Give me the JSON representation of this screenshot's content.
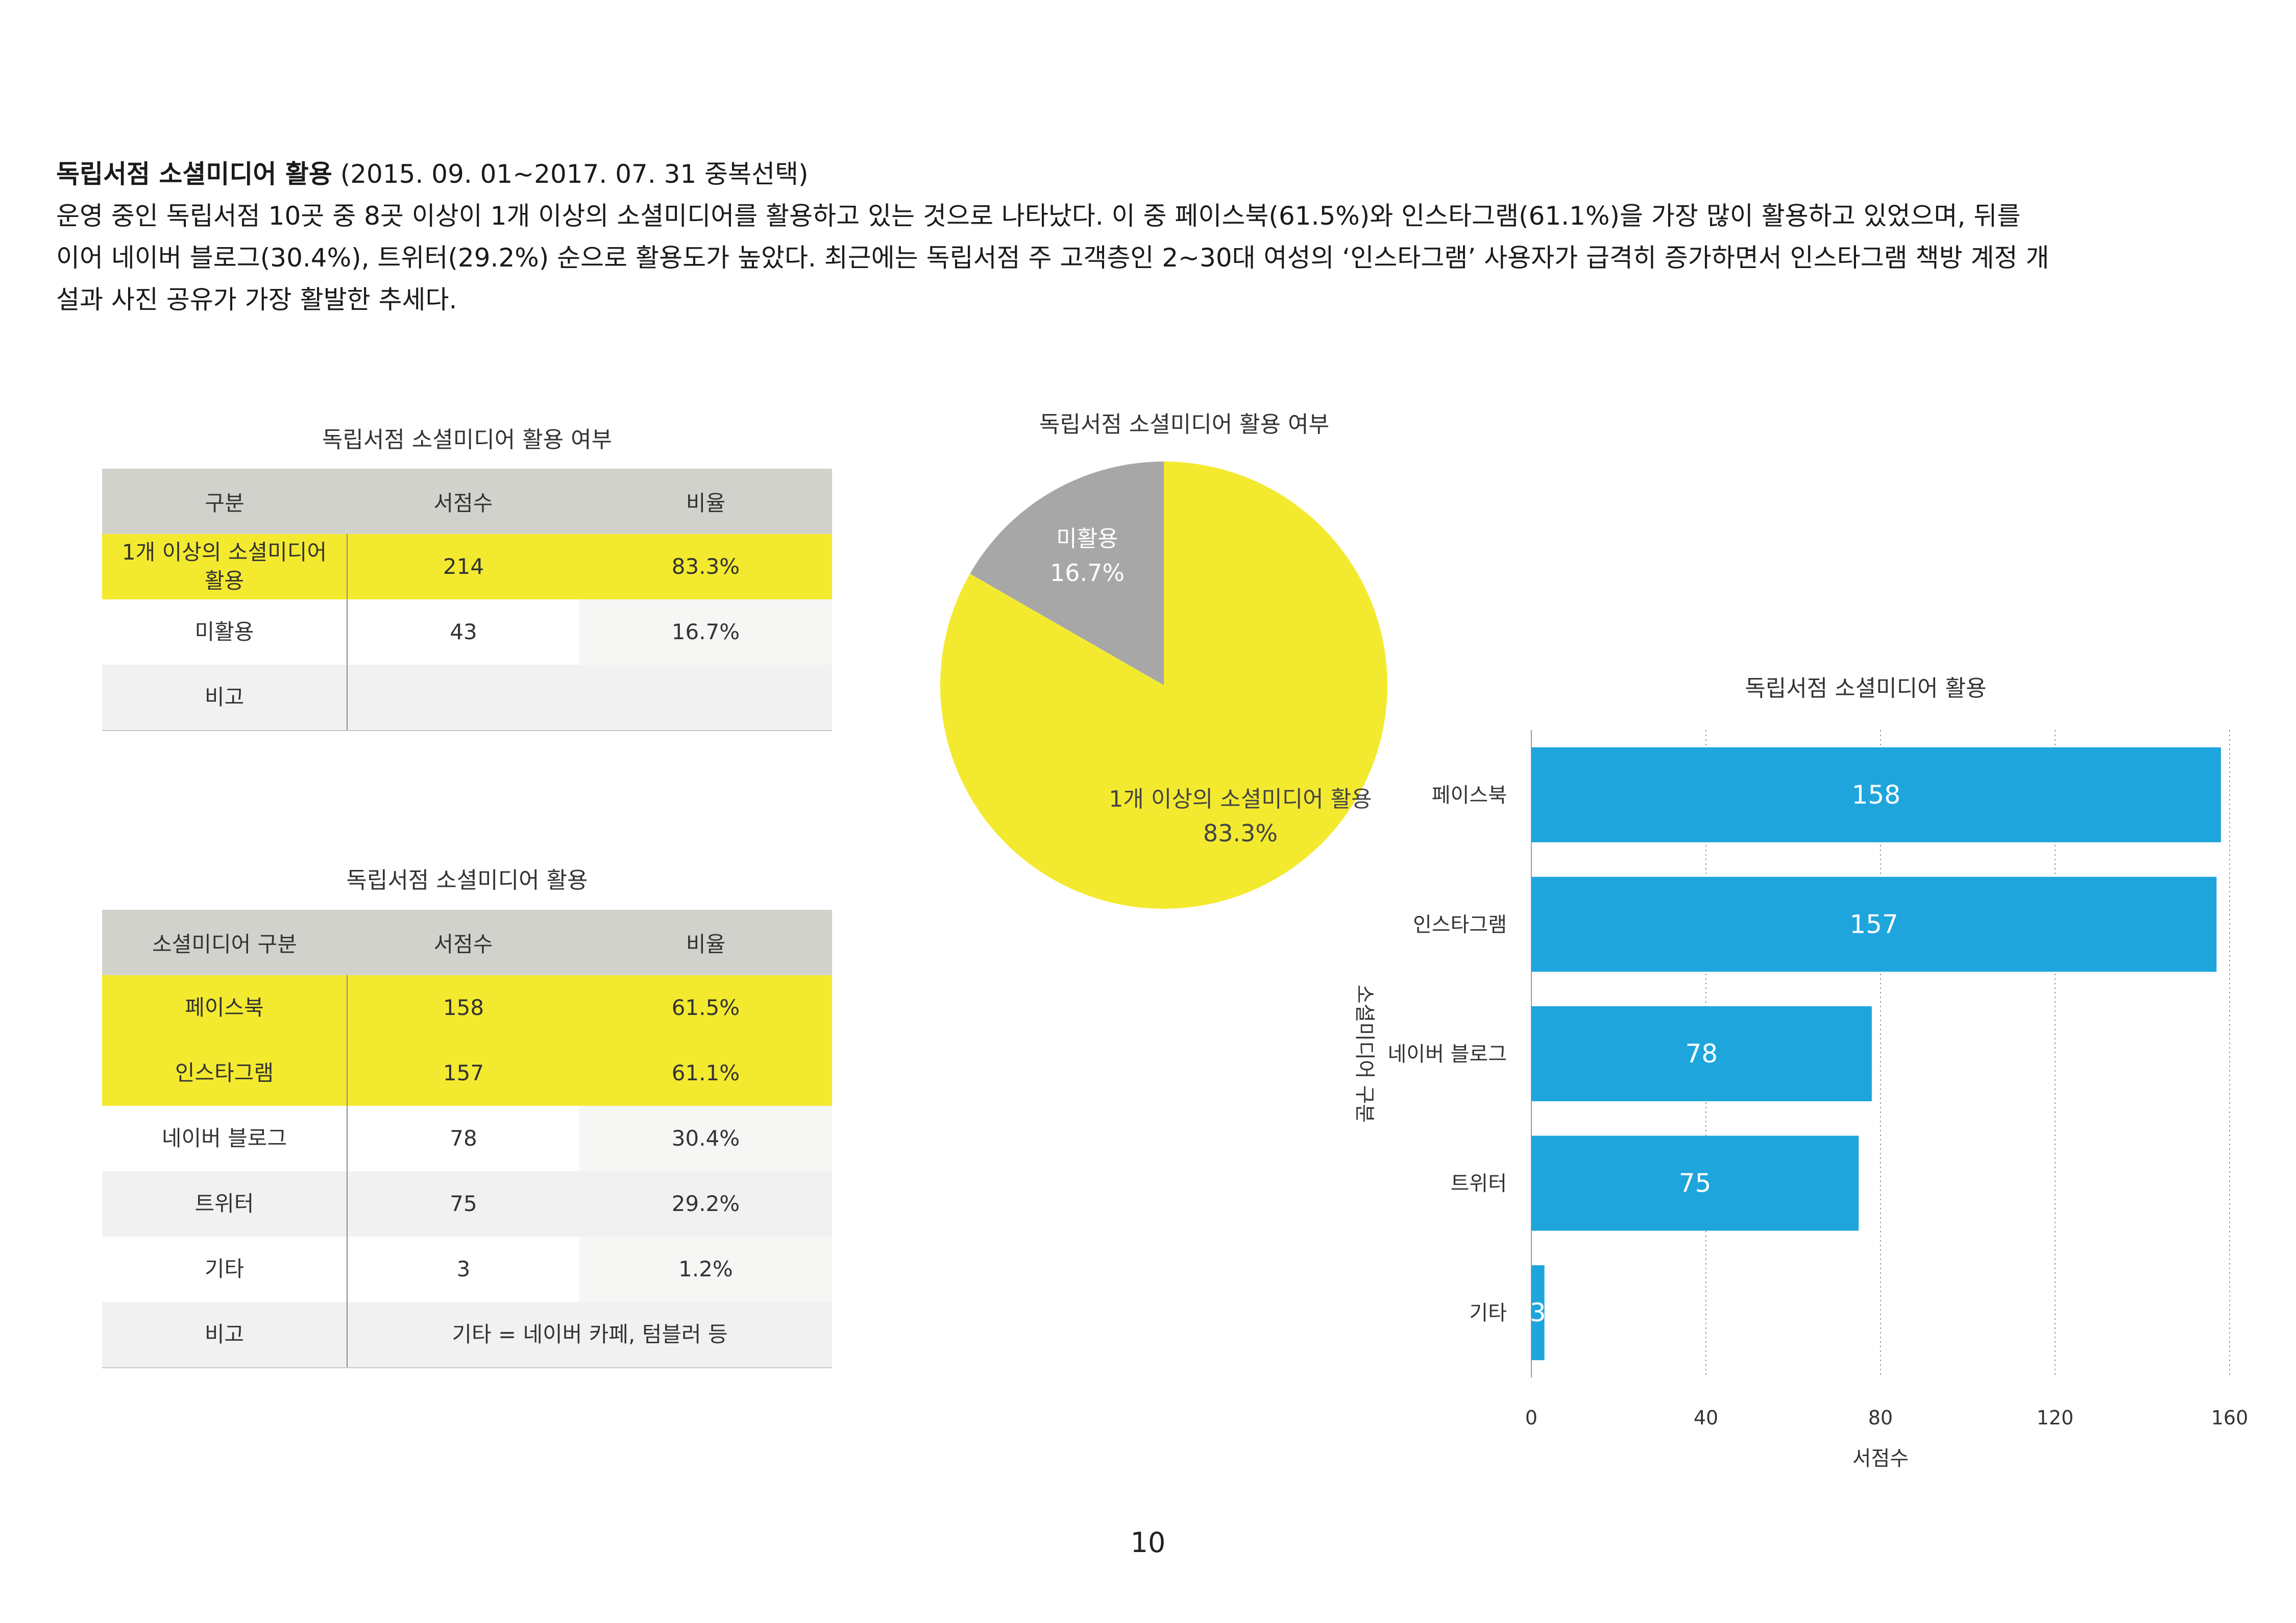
{
  "intro": {
    "title": "독립서점 소셜미디어 활용",
    "period": " (2015. 09. 01~2017. 07. 31 중복선택)",
    "line1": "운영 중인 독립서점 10곳 중 8곳 이상이 1개 이상의 소셜미디어를 활용하고 있는 것으로 나타났다. 이 중 페이스북(61.5%)와 인스타그램(61.1%)을 가장 많이 활용하고 있었으며, 뒤를",
    "line2": "이어 네이버 블로그(30.4%), 트위터(29.2%) 순으로 활용도가 높았다. 최근에는 독립서점 주 고객층인 2~30대 여성의 ‘인스타그램’ 사용자가 급격히 증가하면서 인스타그램 책방 계정 개",
    "line3": "설과 사진 공유가 가장 활발한 추세다."
  },
  "table1": {
    "caption": "독립서점 소셜미디어 활용 여부",
    "headers": [
      "구분",
      "서점수",
      "비율"
    ],
    "rows": [
      [
        "1개 이상의 소셜미디어 활용",
        "214",
        "83.3%"
      ],
      [
        "미활용",
        "43",
        "16.7%"
      ],
      [
        "비고",
        "",
        ""
      ]
    ]
  },
  "table2": {
    "caption": "독립서점 소셜미디어 활용",
    "headers": [
      "소셜미디어 구분",
      "서점수",
      "비율"
    ],
    "rows": [
      [
        "페이스북",
        "158",
        "61.5%"
      ],
      [
        "인스타그램",
        "157",
        "61.1%"
      ],
      [
        "네이버 블로그",
        "78",
        "30.4%"
      ],
      [
        "트위터",
        "75",
        "29.2%"
      ],
      [
        "기타",
        "3",
        "1.2%"
      ],
      [
        "비고",
        "기타 = 네이버 카페, 텀블러 등",
        ""
      ]
    ]
  },
  "chart_data": [
    {
      "type": "pie",
      "title": "독립서점 소셜미디어 활용 여부",
      "slices": [
        {
          "label": "1개 이상의 소셜미디어 활용",
          "value": 83.3,
          "display": "83.3%",
          "color": "#f3ea30"
        },
        {
          "label": "미활용",
          "value": 16.7,
          "display": "16.7%",
          "color": "#a7a7a7"
        }
      ]
    },
    {
      "type": "bar",
      "orientation": "horizontal",
      "title": "독립서점 소셜미디어 활용",
      "categories": [
        "페이스북",
        "인스타그램",
        "네이버 블로그",
        "트위터",
        "기타"
      ],
      "values": [
        158,
        157,
        78,
        75,
        3
      ],
      "xlabel": "서점수",
      "ylabel": "소셜미디어 구분",
      "xlim": [
        0,
        160
      ],
      "xticks": [
        0,
        40,
        80,
        120,
        160
      ],
      "grid": "vertical dotted",
      "bar_color": "#1ea5dc"
    }
  ],
  "page_number": "10"
}
